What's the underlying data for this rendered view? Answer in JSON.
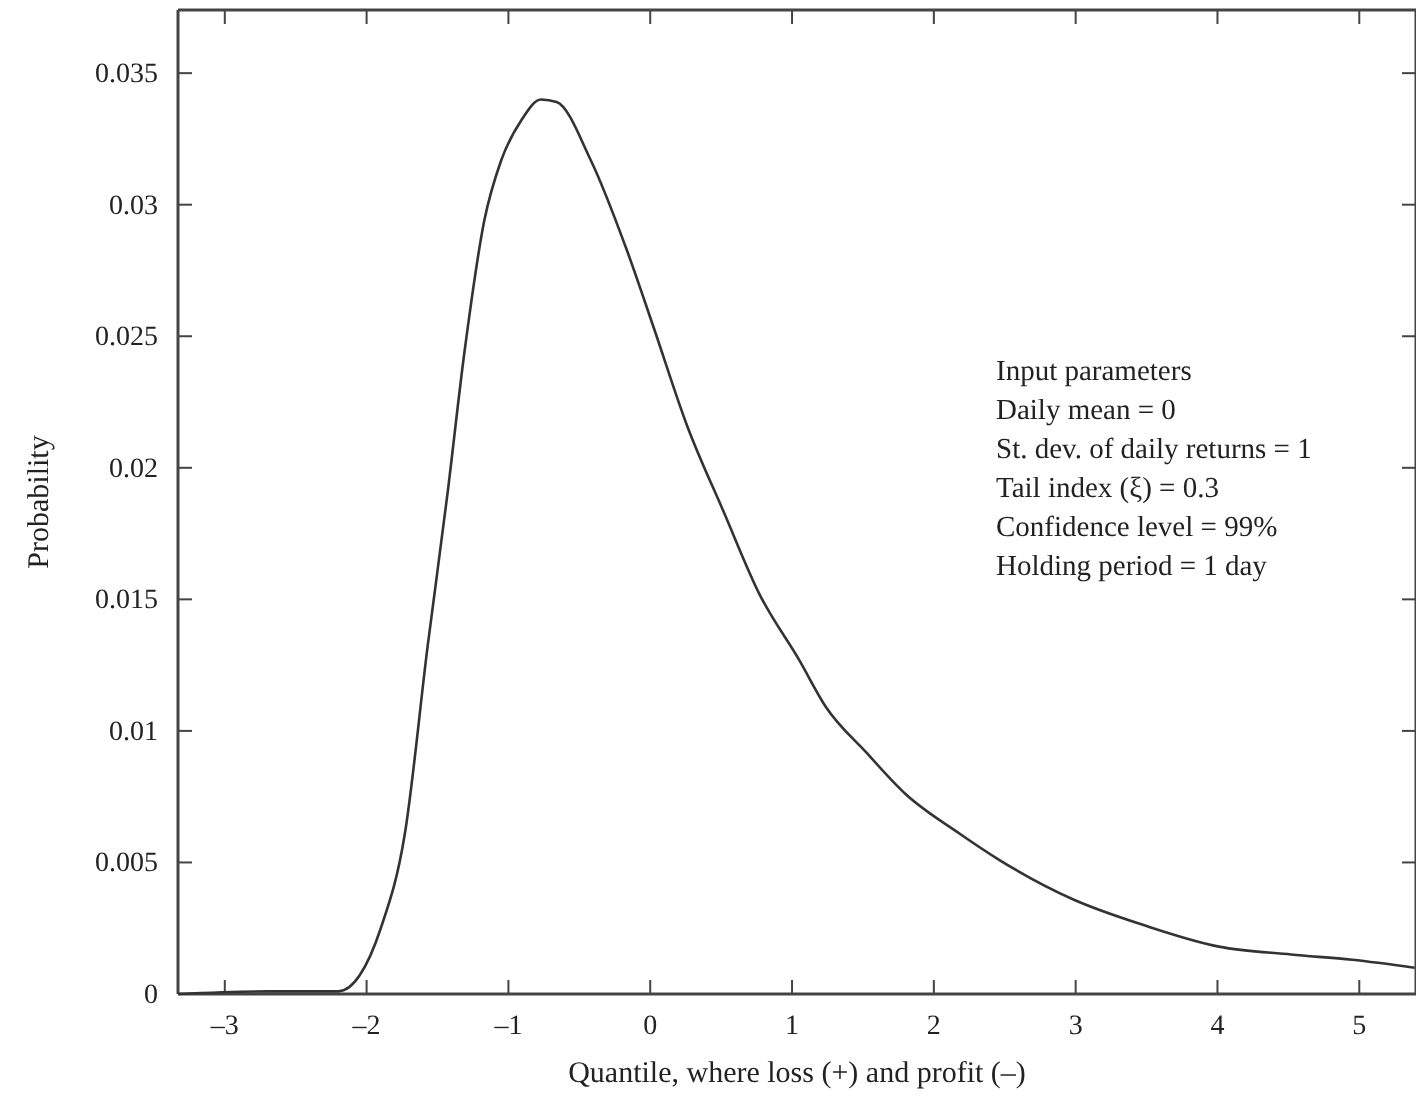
{
  "chart_data": {
    "type": "line",
    "xlabel": "Quantile, where loss (+) and profit (–)",
    "ylabel": "Probability",
    "annotations": [
      "Input parameters",
      "Daily mean = 0",
      "St. dev. of daily returns = 1",
      "Tail index (ξ) = 0.3",
      "Confidence level = 99%",
      "Holding period = 1 day"
    ],
    "xlim": [
      -3.33,
      5.4
    ],
    "ylim": [
      0,
      0.0374
    ],
    "xticks": [
      {
        "value": -3,
        "label": "–3"
      },
      {
        "value": -2,
        "label": "–2"
      },
      {
        "value": -1,
        "label": "–1"
      },
      0,
      1,
      2,
      3,
      4,
      5
    ],
    "yticks": [
      0,
      0.005,
      0.01,
      0.015,
      0.02,
      0.025,
      0.03,
      0.035
    ],
    "grid": false,
    "marker": "none",
    "line_style": "solid",
    "series": [
      {
        "color": "#333333",
        "x": [
          -3.33,
          -2.7,
          -2.2,
          -2.05,
          -1.9,
          -1.73,
          -1.57,
          -1.43,
          -1.31,
          -1.17,
          -1.05,
          -0.91,
          -0.77,
          -0.66,
          -0.42,
          -0.16,
          0.02,
          0.26,
          0.52,
          0.77,
          1.05,
          1.24,
          1.52,
          1.8,
          2.18,
          2.46,
          2.98,
          3.49,
          4.01,
          4.52,
          4.95,
          5.39
        ],
        "values": [
          0,
          0.0001,
          0.0001,
          0.0007,
          0.0025,
          0.0061,
          0.0132,
          0.019,
          0.0244,
          0.0294,
          0.0317,
          0.0332,
          0.034,
          0.0339,
          0.0317,
          0.0282,
          0.0254,
          0.0216,
          0.0183,
          0.0152,
          0.0127,
          0.0109,
          0.0092,
          0.0076,
          0.0061,
          0.0051,
          0.0036,
          0.0026,
          0.0018,
          0.0015,
          0.0013,
          0.001
        ]
      }
    ]
  }
}
